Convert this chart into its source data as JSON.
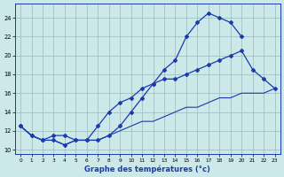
{
  "hours": [
    0,
    1,
    2,
    3,
    4,
    5,
    6,
    7,
    8,
    9,
    10,
    11,
    12,
    13,
    14,
    15,
    16,
    17,
    18,
    19,
    20,
    21,
    22,
    23
  ],
  "line_top": [
    12.5,
    11.5,
    11.0,
    11.0,
    10.5,
    11.0,
    11.0,
    11.0,
    11.5,
    12.5,
    14.0,
    15.5,
    17.0,
    18.5,
    19.5,
    22.0,
    23.5,
    24.5,
    24.0,
    23.5,
    22.0,
    null,
    null,
    null
  ],
  "line_mid": [
    12.5,
    11.5,
    11.0,
    11.5,
    11.5,
    11.0,
    11.0,
    12.5,
    14.0,
    15.0,
    15.5,
    16.5,
    17.0,
    17.5,
    17.5,
    18.0,
    18.5,
    19.0,
    19.5,
    20.0,
    20.5,
    18.5,
    17.5,
    16.5
  ],
  "line_low": [
    12.5,
    11.5,
    11.0,
    11.0,
    10.5,
    11.0,
    11.0,
    11.0,
    11.5,
    12.0,
    12.5,
    13.0,
    13.0,
    13.5,
    14.0,
    14.5,
    14.5,
    15.0,
    15.5,
    15.5,
    16.0,
    16.0,
    16.0,
    16.5
  ],
  "bg_color": "#cce8e8",
  "line_color": "#1a3ab0",
  "grid_color": "#99bbbb",
  "xlabel": "Graphe des températures (°c)",
  "ylim": [
    9.5,
    25.5
  ],
  "xlim": [
    -0.5,
    23.5
  ],
  "yticks": [
    10,
    12,
    14,
    16,
    18,
    20,
    22,
    24
  ],
  "xticks": [
    0,
    1,
    2,
    3,
    4,
    5,
    6,
    7,
    8,
    9,
    10,
    11,
    12,
    13,
    14,
    15,
    16,
    17,
    18,
    19,
    20,
    21,
    22,
    23
  ]
}
